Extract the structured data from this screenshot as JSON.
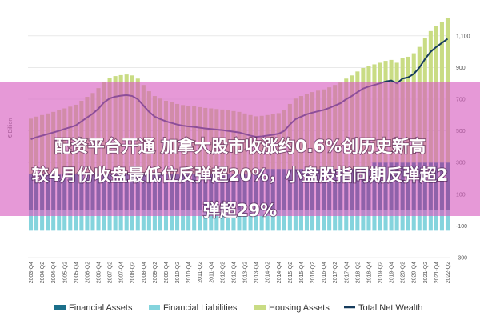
{
  "chart_data": {
    "type": "stacked-bar-line",
    "y_label": "€ Billion",
    "categories": [
      "2003-Q4",
      null,
      "2004-Q2",
      null,
      "2004-Q4",
      null,
      "2005-Q2",
      null,
      "2005-Q4",
      null,
      "2006-Q2",
      null,
      "2006-Q4",
      null,
      "2007-Q2",
      null,
      "2007-Q4",
      null,
      "2008-Q2",
      null,
      "2008-Q4",
      null,
      "2009-Q2",
      null,
      "2009-Q4",
      null,
      "2010-Q2",
      null,
      "2010-Q4",
      null,
      "2011-Q2",
      null,
      "2011-Q4",
      null,
      "2012-Q2",
      null,
      "2012-Q4",
      null,
      "2013-Q2",
      null,
      "2013-Q4",
      null,
      "2014-Q2",
      null,
      "2014-Q4",
      null,
      "2015-Q2",
      null,
      "2015-Q4",
      null,
      "2016-Q2",
      null,
      "2016-Q4",
      null,
      "2017-Q2",
      null,
      "2017-Q4",
      null,
      "2018-Q2",
      null,
      "2018-Q4",
      null,
      "2019-Q2",
      null,
      "2019-Q4",
      null,
      "2020-Q2",
      null,
      "2020-Q4",
      null,
      "2021-Q2",
      null,
      "2021-Q4",
      null,
      "2022-Q2"
    ],
    "series": [
      {
        "name": "Financial Assets",
        "color": "#1b6f8a",
        "kind": "bar",
        "values": [
          230,
          230,
          230,
          230,
          230,
          230,
          230,
          230,
          230,
          230,
          230,
          230,
          230,
          230,
          230,
          230,
          230,
          230,
          230,
          230,
          230,
          230,
          230,
          230,
          230,
          230,
          230,
          230,
          230,
          230,
          230,
          230,
          230,
          230,
          230,
          230,
          230,
          230,
          230,
          230,
          230,
          260,
          260,
          260,
          260,
          260,
          260,
          260,
          260,
          260,
          260,
          260,
          260,
          260,
          260,
          260,
          260,
          260,
          260,
          260,
          260,
          300,
          300,
          300,
          300,
          300,
          300,
          300,
          300,
          300,
          300,
          300,
          300,
          300,
          300
        ]
      },
      {
        "name": "Financial Liabilities",
        "color": "#84d4dd",
        "kind": "bar",
        "values": [
          -130,
          -130,
          -130,
          -130,
          -130,
          -130,
          -130,
          -130,
          -130,
          -130,
          -130,
          -130,
          -130,
          -130,
          -130,
          -130,
          -130,
          -130,
          -130,
          -130,
          -130,
          -130,
          -130,
          -130,
          -130,
          -130,
          -130,
          -130,
          -130,
          -130,
          -130,
          -130,
          -130,
          -130,
          -130,
          -130,
          -130,
          -130,
          -130,
          -130,
          -130,
          -130,
          -130,
          -130,
          -130,
          -130,
          -130,
          -130,
          -130,
          -130,
          -130,
          -130,
          -130,
          -130,
          -130,
          -130,
          -130,
          -130,
          -130,
          -130,
          -130,
          -130,
          -130,
          -130,
          -130,
          -130,
          -130,
          -130,
          -130,
          -130,
          -130,
          -130,
          -130,
          -130,
          -130
        ]
      },
      {
        "name": "Housing Assets",
        "color": "#c9dc84",
        "kind": "bar",
        "values": [
          347,
          360,
          370,
          380,
          390,
          400,
          412,
          423,
          435,
          460,
          485,
          509,
          540,
          580,
          605,
          616,
          622,
          626,
          620,
          600,
          560,
          520,
          490,
          474,
          460,
          450,
          440,
          433,
          428,
          425,
          420,
          415,
          412,
          408,
          405,
          400,
          395,
          390,
          380,
          370,
          362,
          335,
          340,
          346,
          352,
          370,
          410,
          444,
          460,
          475,
          485,
          494,
          502,
          515,
          530,
          545,
          570,
          590,
          615,
          637,
          650,
          620,
          630,
          642,
          648,
          630,
          660,
          668,
          690,
          730,
          784,
          830,
          860,
          886,
          911
        ]
      },
      {
        "name": "Total Net Wealth",
        "color": "#153b5c",
        "kind": "line",
        "values": [
          447,
          460,
          470,
          480,
          490,
          500,
          512,
          523,
          535,
          560,
          585,
          609,
          640,
          680,
          705,
          716,
          722,
          726,
          720,
          700,
          660,
          620,
          590,
          574,
          560,
          550,
          540,
          533,
          528,
          525,
          520,
          515,
          512,
          508,
          505,
          500,
          495,
          490,
          480,
          470,
          462,
          465,
          470,
          476,
          482,
          500,
          540,
          574,
          590,
          605,
          615,
          624,
          632,
          645,
          660,
          675,
          700,
          720,
          745,
          767,
          780,
          790,
          800,
          812,
          818,
          800,
          830,
          838,
          860,
          900,
          954,
          1000,
          1030,
          1056,
          1081
        ]
      }
    ],
    "ylim": [
      -300,
      1200
    ],
    "yticks": [
      -300,
      -100,
      100,
      300,
      500,
      700,
      900,
      {
        "value": 1100,
        "label": "1,100"
      }
    ],
    "grid": true
  },
  "banner": {
    "lines": [
      "配资平台开通 加拿大股市收涨约0.6%创历史新高",
      "较4月份收盘最低位反弹超20%，小盘股指同期反弹超2",
      "弹超29%"
    ]
  }
}
